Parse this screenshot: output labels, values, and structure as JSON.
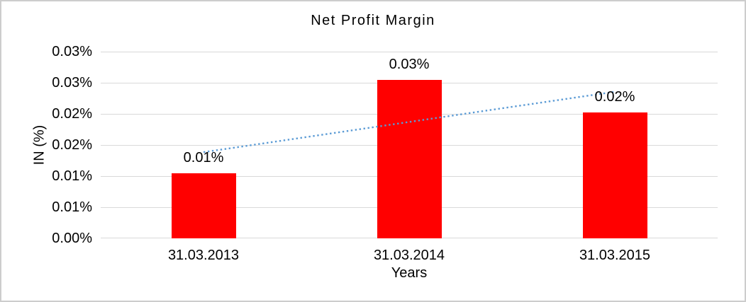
{
  "chart_data": {
    "type": "bar",
    "title": "Net Profit Margin",
    "xlabel": "Years",
    "ylabel": "IN (%)",
    "categories": [
      "31.03.2013",
      "31.03.2014",
      "31.03.2015"
    ],
    "values": [
      0.0105,
      0.0254,
      0.0202
    ],
    "data_labels": [
      "0.01%",
      "0.03%",
      "0.02%"
    ],
    "ylim": [
      0,
      0.03
    ],
    "y_ticks": [
      {
        "value": 0.03,
        "label": "0.03%"
      },
      {
        "value": 0.025,
        "label": "0.03%"
      },
      {
        "value": 0.02,
        "label": "0.02%"
      },
      {
        "value": 0.015,
        "label": "0.02%"
      },
      {
        "value": 0.01,
        "label": "0.01%"
      },
      {
        "value": 0.005,
        "label": "0.01%"
      },
      {
        "value": 0.0,
        "label": "0.00%"
      }
    ],
    "grid": "horizontal",
    "legend": "none",
    "bar_color": "#ff0000",
    "trendline": {
      "type": "linear",
      "style": "dotted",
      "color": "#5b9bd5"
    },
    "colors": {
      "gridline": "#d9d9d9",
      "text": "#000000",
      "background": "#ffffff",
      "frame_border": "#cdcdcd"
    }
  }
}
